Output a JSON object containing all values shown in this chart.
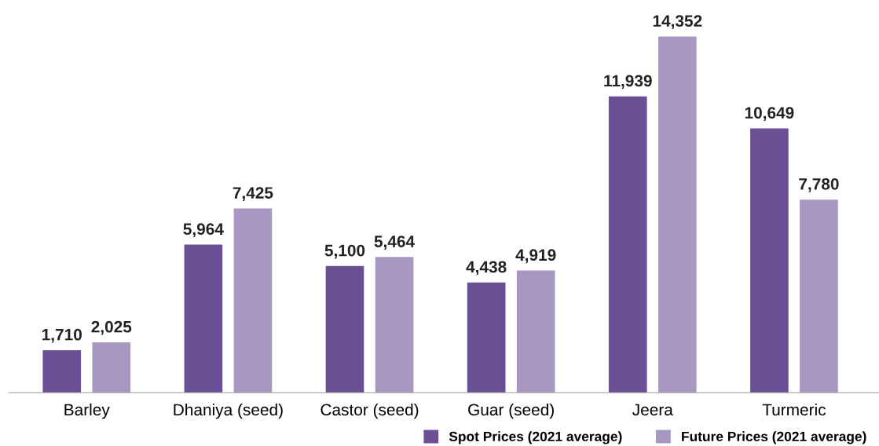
{
  "chart_data": {
    "type": "bar",
    "categories": [
      "Barley",
      "Dhaniya (seed)",
      "Castor (seed)",
      "Guar (seed)",
      "Jeera",
      "Turmeric"
    ],
    "series": [
      {
        "name": "Spot Prices (2021 average)",
        "color": "#6b4f94",
        "values": [
          1710,
          5964,
          5100,
          4438,
          11939,
          10649
        ],
        "value_labels": [
          "1,710",
          "5,964",
          "5,100",
          "4,438",
          "11,939",
          "10,649"
        ]
      },
      {
        "name": "Future Prices (2021 average)",
        "color": "#a797c1",
        "values": [
          2025,
          7425,
          5464,
          4919,
          14352,
          7780
        ],
        "value_labels": [
          "2,025",
          "7,425",
          "5,464",
          "4,919",
          "14,352",
          "7,780"
        ]
      }
    ],
    "legend": "bottom right",
    "grid": false,
    "tick_labels": "x"
  }
}
